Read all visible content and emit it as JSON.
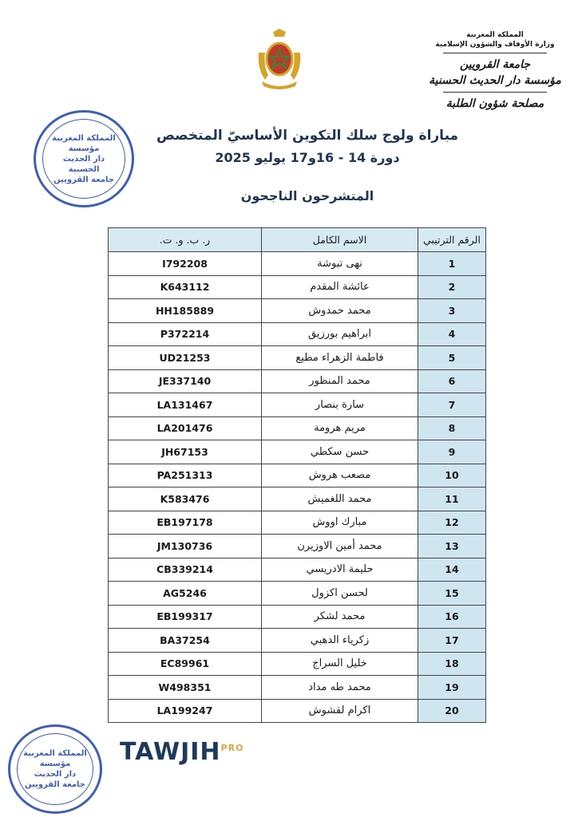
{
  "header": {
    "kingdom": "المملكة المغربية",
    "ministry": "وزارة الأوقاف والشؤون الإسلامية",
    "university": "جامعة القرويين",
    "institution": "مؤسسة دار الحديث الحسنية",
    "department": "مصلحة شؤون الطلبة"
  },
  "title": {
    "line1": "مباراة ولوج سلك التكوين الأساسيّ المتخصص",
    "line2": "دورة 14 - 16و17 يوليو 2025",
    "subtitle": "المتشرحون الناجحون"
  },
  "table": {
    "headers": [
      "الرقم الترتيبي",
      "الاسم الكامل",
      "ر. ب. و. ت."
    ],
    "rows": [
      [
        "1",
        "نهى تبوشة",
        "I792208"
      ],
      [
        "2",
        "عائشة المقدم",
        "K643112"
      ],
      [
        "3",
        "محمد حمدوش",
        "HH185889"
      ],
      [
        "4",
        "ابراهيم بورزيق",
        "P372214"
      ],
      [
        "5",
        "فاطمة الزهراء مطيع",
        "UD21253"
      ],
      [
        "6",
        "محمد المنظور",
        "JE337140"
      ],
      [
        "7",
        "سارة بنصار",
        "LA131467"
      ],
      [
        "8",
        "مريم هرومة",
        "LA201476"
      ],
      [
        "9",
        "حسن سكطي",
        "JH67153"
      ],
      [
        "10",
        "مصعب هروش",
        "PA251313"
      ],
      [
        "11",
        "محمد اللغميش",
        "K583476"
      ],
      [
        "12",
        "مبارك اووش",
        "EB197178"
      ],
      [
        "13",
        "محمد أمين الاوزيرن",
        "JM130736"
      ],
      [
        "14",
        "حليمة الادريسي",
        "CB339214"
      ],
      [
        "15",
        "لحسن اكزول",
        "AG5246"
      ],
      [
        "16",
        "محمد لشكر",
        "EB199317"
      ],
      [
        "17",
        "زكرياء الدهبي",
        "BA37254"
      ],
      [
        "18",
        "خليل السراج",
        "EC89961"
      ],
      [
        "19",
        "محمد طه مداد",
        "W498351"
      ],
      [
        "20",
        "اكرام لقشوش",
        "LA199247"
      ]
    ]
  },
  "stamps": {
    "text": [
      "المملكة المغربية",
      "مؤسسة",
      "دار الحديث",
      "الحسنية",
      "جامعة القرويين"
    ]
  },
  "watermark": {
    "main": "TAWJIH",
    "sup": "PRO"
  },
  "colors": {
    "title": "#1f3550",
    "header_bg": "#d5eaf3",
    "stamp": "#3f5fb5"
  }
}
